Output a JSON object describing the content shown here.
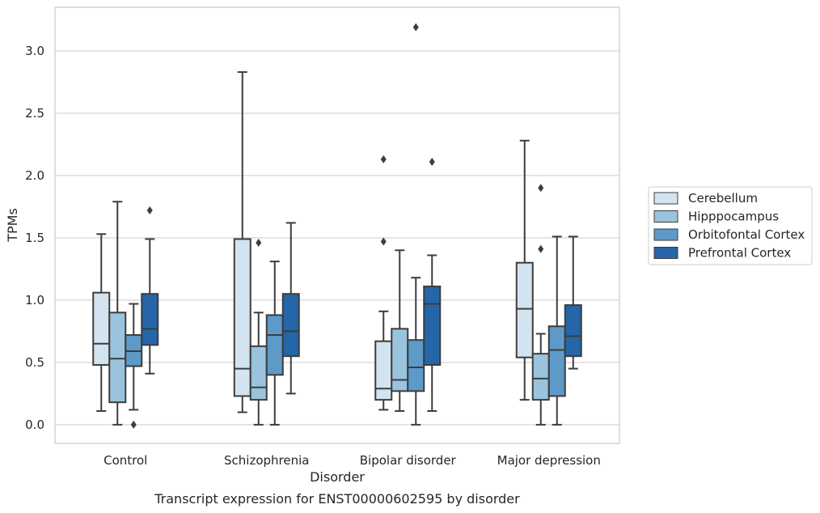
{
  "chart_data": {
    "type": "box",
    "caption": "Transcript expression for ENST00000602595 by disorder",
    "xlabel": "Disorder",
    "ylabel": "TPMs",
    "ylim": [
      -0.15,
      3.35
    ],
    "yticks": [
      "0.0",
      "0.5",
      "1.0",
      "1.5",
      "2.0",
      "2.5",
      "3.0"
    ],
    "grid": "horizontal",
    "legend_position": "right",
    "categories": [
      "Control",
      "Schizophrenia",
      "Bipolar disorder",
      "Major depression"
    ],
    "series": [
      {
        "name": "Cerebellum",
        "color": "#d3e3f0",
        "boxes": [
          {
            "whisker_low": 0.11,
            "q1": 0.48,
            "median": 0.65,
            "q3": 1.06,
            "whisker_high": 1.53,
            "outliers": []
          },
          {
            "whisker_low": 0.1,
            "q1": 0.23,
            "median": 0.45,
            "q3": 1.49,
            "whisker_high": 2.83,
            "outliers": []
          },
          {
            "whisker_low": 0.12,
            "q1": 0.2,
            "median": 0.29,
            "q3": 0.67,
            "whisker_high": 0.91,
            "outliers": [
              1.47,
              2.13
            ]
          },
          {
            "whisker_low": 0.2,
            "q1": 0.54,
            "median": 0.93,
            "q3": 1.3,
            "whisker_high": 2.28,
            "outliers": []
          }
        ]
      },
      {
        "name": "Hipppocampus",
        "color": "#9ac3de",
        "boxes": [
          {
            "whisker_low": 0.0,
            "q1": 0.18,
            "median": 0.53,
            "q3": 0.9,
            "whisker_high": 1.79,
            "outliers": []
          },
          {
            "whisker_low": 0.0,
            "q1": 0.2,
            "median": 0.3,
            "q3": 0.63,
            "whisker_high": 0.9,
            "outliers": [
              1.46
            ]
          },
          {
            "whisker_low": 0.11,
            "q1": 0.27,
            "median": 0.36,
            "q3": 0.77,
            "whisker_high": 1.4,
            "outliers": []
          },
          {
            "whisker_low": 0.0,
            "q1": 0.2,
            "median": 0.37,
            "q3": 0.57,
            "whisker_high": 0.73,
            "outliers": [
              1.41,
              1.9
            ]
          }
        ]
      },
      {
        "name": "Orbitofontal Cortex",
        "color": "#5d9ac8",
        "boxes": [
          {
            "whisker_low": 0.12,
            "q1": 0.47,
            "median": 0.59,
            "q3": 0.72,
            "whisker_high": 0.97,
            "outliers": [
              0.0
            ]
          },
          {
            "whisker_low": 0.0,
            "q1": 0.4,
            "median": 0.72,
            "q3": 0.88,
            "whisker_high": 1.31,
            "outliers": []
          },
          {
            "whisker_low": 0.0,
            "q1": 0.27,
            "median": 0.46,
            "q3": 0.68,
            "whisker_high": 1.18,
            "outliers": [
              3.19
            ]
          },
          {
            "whisker_low": 0.0,
            "q1": 0.23,
            "median": 0.6,
            "q3": 0.79,
            "whisker_high": 1.51,
            "outliers": []
          }
        ]
      },
      {
        "name": "Prefrontal Cortex",
        "color": "#2466a8",
        "boxes": [
          {
            "whisker_low": 0.41,
            "q1": 0.64,
            "median": 0.77,
            "q3": 1.05,
            "whisker_high": 1.49,
            "outliers": [
              1.72
            ]
          },
          {
            "whisker_low": 0.25,
            "q1": 0.55,
            "median": 0.75,
            "q3": 1.05,
            "whisker_high": 1.62,
            "outliers": []
          },
          {
            "whisker_low": 0.11,
            "q1": 0.48,
            "median": 0.97,
            "q3": 1.11,
            "whisker_high": 1.36,
            "outliers": [
              2.11
            ]
          },
          {
            "whisker_low": 0.45,
            "q1": 0.55,
            "median": 0.71,
            "q3": 0.96,
            "whisker_high": 1.51,
            "outliers": []
          }
        ]
      }
    ]
  }
}
